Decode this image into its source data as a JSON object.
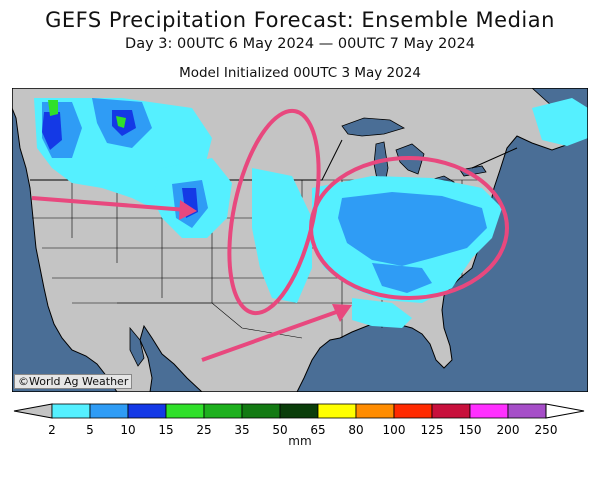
{
  "title": "GEFS Precipitation Forecast: Ensemble Median",
  "subtitle": "Day 3: 00UTC 6 May 2024 — 00UTC 7 May 2024",
  "initialized": "Model Initialized 00UTC 3 May 2024",
  "credit": "©World Ag Weather",
  "legend": {
    "unit": "mm",
    "ticks": [
      "2",
      "5",
      "10",
      "15",
      "25",
      "35",
      "50",
      "65",
      "80",
      "100",
      "125",
      "150",
      "200",
      "250"
    ],
    "colors": [
      "#55f0ff",
      "#2f9cf5",
      "#1439e6",
      "#30e02a",
      "#1eb01e",
      "#137a13",
      "#0a3d0a",
      "#ffff00",
      "#ff8c00",
      "#ff2a00",
      "#c8103c",
      "#ff30ff",
      "#a64ec8"
    ]
  },
  "colors": {
    "ocean": "#4a6e96",
    "land": "#c4c4c4",
    "annotation": "#e8487e"
  }
}
